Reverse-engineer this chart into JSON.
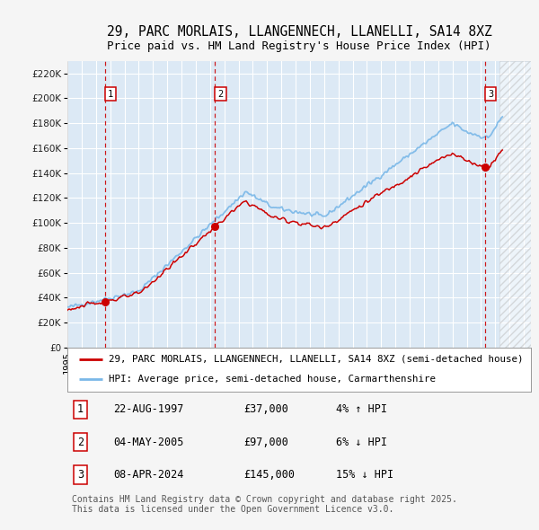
{
  "title": "29, PARC MORLAIS, LLANGENNECH, LLANELLI, SA14 8XZ",
  "subtitle": "Price paid vs. HM Land Registry's House Price Index (HPI)",
  "ylim": [
    0,
    230000
  ],
  "yticks": [
    0,
    20000,
    40000,
    60000,
    80000,
    100000,
    120000,
    140000,
    160000,
    180000,
    200000,
    220000
  ],
  "ytick_labels": [
    "£0",
    "£20K",
    "£40K",
    "£60K",
    "£80K",
    "£100K",
    "£120K",
    "£140K",
    "£160K",
    "£180K",
    "£200K",
    "£220K"
  ],
  "xlim_start": 1995.0,
  "xlim_end": 2027.5,
  "hatch_start": 2025.3,
  "bg_color": "#dce9f5",
  "grid_color": "#ffffff",
  "hpi_color": "#7ab8e8",
  "price_color": "#cc0000",
  "transactions": [
    {
      "num": 1,
      "date": "22-AUG-1997",
      "price": 37000,
      "year": 1997.64,
      "price_str": "£37,000",
      "hpi_diff": "4% ↑ HPI"
    },
    {
      "num": 2,
      "date": "04-MAY-2005",
      "price": 97000,
      "year": 2005.34,
      "price_str": "£97,000",
      "hpi_diff": "6% ↓ HPI"
    },
    {
      "num": 3,
      "date": "08-APR-2024",
      "price": 145000,
      "year": 2024.27,
      "price_str": "£145,000",
      "hpi_diff": "15% ↓ HPI"
    }
  ],
  "legend_entries": [
    "29, PARC MORLAIS, LLANGENNECH, LLANELLI, SA14 8XZ (semi-detached house)",
    "HPI: Average price, semi-detached house, Carmarthenshire"
  ],
  "footer": "Contains HM Land Registry data © Crown copyright and database right 2025.\nThis data is licensed under the Open Government Licence v3.0.",
  "title_fontsize": 10.5,
  "subtitle_fontsize": 9,
  "tick_fontsize": 7.5,
  "legend_fontsize": 7.8,
  "table_fontsize": 8.5,
  "footer_fontsize": 7
}
